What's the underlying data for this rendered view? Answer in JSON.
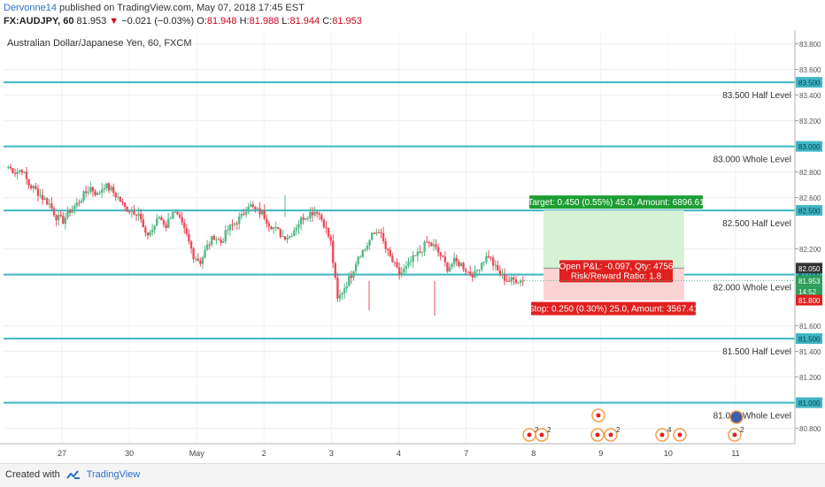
{
  "header": {
    "author": "Dervonne14",
    "published": "published on TradingView.com, May 07, 2018 17:45 EST",
    "symbol": "FX:AUDJPY, 60",
    "last": "81.953",
    "change": "−0.021 (−0.03%)",
    "o_label": "O:",
    "o_val": "81.948",
    "h_label": "H:",
    "h_val": "81.988",
    "l_label": "L:",
    "l_val": "81.944",
    "c_label": "C:",
    "c_val": "81.953"
  },
  "footer": {
    "created_with": "Created with",
    "brand": "TradingView"
  },
  "colors": {
    "up": "#53b987",
    "down": "#eb4d5c",
    "level": "#3fb5c4",
    "target_fill": "#d6f2d6",
    "stop_fill": "#fbd3d3",
    "target_label": "#1e9e34",
    "stop_label": "#e02020"
  },
  "chart_data": {
    "type": "candlestick",
    "title": "Australian Dollar/Japanese Yen, 60, FXCM",
    "timeframe": "60",
    "ylim": [
      80.68,
      83.88
    ],
    "y_ticks": [
      "83.800",
      "83.600",
      "83.400",
      "83.200",
      "82.800",
      "82.600",
      "82.200",
      "81.600",
      "81.400",
      "81.200",
      "80.800"
    ],
    "x_ticks": [
      "27",
      "30",
      "May",
      "2",
      "3",
      "4",
      "7",
      "8",
      "9",
      "10",
      "11"
    ],
    "levels": [
      {
        "price": 83.5,
        "label": "83.500  Half Level",
        "axis_label": "83.500"
      },
      {
        "price": 83.0,
        "label": "83.000  Whole Level",
        "axis_label": "83.000"
      },
      {
        "price": 82.5,
        "label": "82.500  Half Level",
        "axis_label": "82.500"
      },
      {
        "price": 82.0,
        "label": "82.000  Whole Level",
        "axis_label": "82.000"
      },
      {
        "price": 81.5,
        "label": "81.500  Half Level",
        "axis_label": "81.500"
      },
      {
        "price": 81.0,
        "label": "81.000  Whole Level",
        "axis_label": "81.000"
      }
    ],
    "axis_badges": [
      {
        "price": 82.05,
        "text": "82.050",
        "style": "dark"
      },
      {
        "price": 81.953,
        "text": "81.953",
        "style": "green"
      },
      {
        "price": 81.87,
        "text": "14:52",
        "style": "green"
      },
      {
        "price": 81.8,
        "text": "81.800",
        "style": "red"
      }
    ],
    "position": {
      "entry": 82.05,
      "target": 82.5,
      "stop": 81.8,
      "target_label": "Target: 0.450 (0.55%) 45.0, Amount: 6896.61",
      "stop_label": "Stop: 0.250 (0.30%) 25.0, Amount: 3567.41",
      "pnl_label": "Open P&L: -0.097, Qty: 4756",
      "rr_label": "Risk/Reward Ratio: 1.8"
    },
    "close_path": [
      82.84,
      82.8,
      82.82,
      82.7,
      82.66,
      82.6,
      82.55,
      82.45,
      82.42,
      82.5,
      82.55,
      82.62,
      82.68,
      82.62,
      82.7,
      82.66,
      82.6,
      82.52,
      82.5,
      82.48,
      82.3,
      82.35,
      82.45,
      82.38,
      82.5,
      82.42,
      82.3,
      82.15,
      82.1,
      82.22,
      82.3,
      82.25,
      82.35,
      82.4,
      82.45,
      82.55,
      82.5,
      82.48,
      82.4,
      82.35,
      82.3,
      82.3,
      82.38,
      82.45,
      82.48,
      82.5,
      82.4,
      82.25,
      81.8,
      81.9,
      82.0,
      82.15,
      82.2,
      82.3,
      82.35,
      82.2,
      82.1,
      82.0,
      82.05,
      82.12,
      82.18,
      82.25,
      82.22,
      82.15,
      82.05,
      82.1,
      82.08,
      82.02,
      82.0,
      82.1,
      82.15,
      82.05,
      81.98,
      81.95,
      81.96,
      81.95
    ],
    "events": [
      {
        "x_index": 0,
        "num": "2"
      },
      {
        "x_index": 1,
        "num": "2"
      },
      {
        "x_index": 2,
        "num": ""
      },
      {
        "x_index": 3,
        "num": ""
      },
      {
        "x_index": 4,
        "num": "2"
      },
      {
        "x_index": 5,
        "num": "4"
      },
      {
        "x_index": 6,
        "num": ""
      },
      {
        "x_index": 7,
        "num": "2"
      }
    ]
  }
}
